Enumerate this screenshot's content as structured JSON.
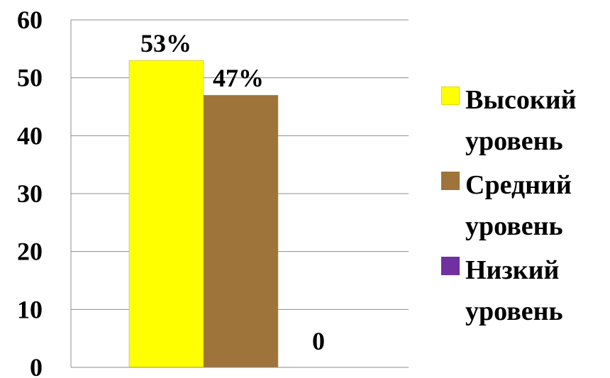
{
  "chart_data": {
    "type": "bar",
    "categories": [
      ""
    ],
    "series": [
      {
        "name": "Высокий уровень",
        "values": [
          53
        ],
        "label": "53%",
        "color": "#ffff00"
      },
      {
        "name": "Средний уровень",
        "values": [
          47
        ],
        "label": "47%",
        "color": "#9e743b"
      },
      {
        "name": "Низкий уровень",
        "values": [
          0
        ],
        "label": "0",
        "color": "#7030a0"
      }
    ],
    "yticks": [
      "0",
      "10",
      "20",
      "30",
      "40",
      "50",
      "60"
    ],
    "ylim": [
      0,
      60
    ],
    "grid": true,
    "legend": "right"
  }
}
